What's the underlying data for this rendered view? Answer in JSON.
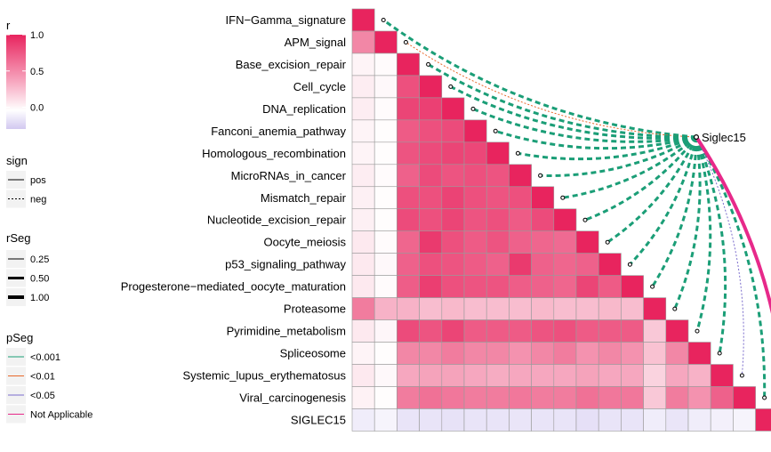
{
  "chart_data": {
    "type": "heatmap",
    "variables": [
      "IFN−Gamma_signature",
      "APM_signal",
      "Base_excision_repair",
      "Cell_cycle",
      "DNA_replication",
      "Fanconi_anemia_pathway",
      "Homologous_recombination",
      "MicroRNAs_in_cancer",
      "Mismatch_repair",
      "Nucleotide_excision_repair",
      "Oocyte_meiosis",
      "p53_signaling_pathway",
      "Progesterone−mediated_oocyte_maturation",
      "Proteasome",
      "Pyrimidine_metabolism",
      "Spliceosome",
      "Systemic_lupus_erythematosus",
      "Viral_carcinogenesis",
      "SIGLEC15"
    ],
    "correlation_rows": [
      [
        1.0
      ],
      [
        0.55,
        1.0
      ],
      [
        0.05,
        0.02,
        1.0
      ],
      [
        0.08,
        0.03,
        0.8,
        1.0
      ],
      [
        0.08,
        0.02,
        0.85,
        0.87,
        1.0
      ],
      [
        0.05,
        0.01,
        0.75,
        0.8,
        0.82,
        1.0
      ],
      [
        0.05,
        0.01,
        0.78,
        0.82,
        0.85,
        0.84,
        1.0
      ],
      [
        0.08,
        0.02,
        0.72,
        0.82,
        0.78,
        0.8,
        0.78,
        1.0
      ],
      [
        0.07,
        0.01,
        0.8,
        0.8,
        0.86,
        0.8,
        0.78,
        0.8,
        1.0
      ],
      [
        0.07,
        0.01,
        0.82,
        0.8,
        0.85,
        0.78,
        0.8,
        0.75,
        0.82,
        1.0
      ],
      [
        0.1,
        0.02,
        0.7,
        0.9,
        0.8,
        0.75,
        0.78,
        0.72,
        0.7,
        0.68,
        1.0
      ],
      [
        0.1,
        0.03,
        0.72,
        0.8,
        0.78,
        0.75,
        0.72,
        0.9,
        0.72,
        0.7,
        0.72,
        1.0
      ],
      [
        0.1,
        0.02,
        0.74,
        0.88,
        0.8,
        0.78,
        0.78,
        0.74,
        0.72,
        0.7,
        0.85,
        0.75,
        1.0
      ],
      [
        0.6,
        0.35,
        0.35,
        0.3,
        0.32,
        0.3,
        0.3,
        0.3,
        0.32,
        0.3,
        0.3,
        0.32,
        0.3,
        1.0
      ],
      [
        0.1,
        0.04,
        0.82,
        0.78,
        0.85,
        0.75,
        0.75,
        0.75,
        0.78,
        0.8,
        0.75,
        0.75,
        0.75,
        0.25,
        1.0
      ],
      [
        0.05,
        0.01,
        0.55,
        0.55,
        0.6,
        0.55,
        0.55,
        0.5,
        0.55,
        0.6,
        0.5,
        0.55,
        0.5,
        0.28,
        0.55,
        1.0
      ],
      [
        0.1,
        0.03,
        0.4,
        0.42,
        0.42,
        0.4,
        0.38,
        0.4,
        0.4,
        0.4,
        0.42,
        0.4,
        0.4,
        0.2,
        0.4,
        0.35,
        1.0
      ],
      [
        0.06,
        0.01,
        0.6,
        0.65,
        0.62,
        0.6,
        0.6,
        0.62,
        0.6,
        0.6,
        0.65,
        0.62,
        0.62,
        0.25,
        0.6,
        0.5,
        0.72,
        1.0
      ],
      [
        -0.1,
        -0.06,
        -0.15,
        -0.15,
        -0.16,
        -0.15,
        -0.15,
        -0.14,
        -0.15,
        -0.15,
        -0.17,
        -0.15,
        -0.15,
        -0.1,
        -0.14,
        -0.1,
        -0.08,
        -0.06,
        1.0
      ]
    ],
    "target": "Siglec15",
    "links": [
      {
        "to": "IFN−Gamma_signature",
        "sign": "pos",
        "p_category": "<0.001",
        "width_class": "0.50"
      },
      {
        "to": "APM_signal",
        "sign": "neg",
        "p_category": "<0.01",
        "width_class": "0.25"
      },
      {
        "to": "Base_excision_repair",
        "sign": "pos",
        "p_category": "<0.001",
        "width_class": "0.50"
      },
      {
        "to": "Cell_cycle",
        "sign": "pos",
        "p_category": "<0.001",
        "width_class": "0.50"
      },
      {
        "to": "DNA_replication",
        "sign": "pos",
        "p_category": "<0.001",
        "width_class": "0.50"
      },
      {
        "to": "Fanconi_anemia_pathway",
        "sign": "pos",
        "p_category": "<0.001",
        "width_class": "0.50"
      },
      {
        "to": "Homologous_recombination",
        "sign": "pos",
        "p_category": "<0.001",
        "width_class": "0.50"
      },
      {
        "to": "MicroRNAs_in_cancer",
        "sign": "pos",
        "p_category": "<0.001",
        "width_class": "0.50"
      },
      {
        "to": "Mismatch_repair",
        "sign": "pos",
        "p_category": "<0.001",
        "width_class": "0.50"
      },
      {
        "to": "Nucleotide_excision_repair",
        "sign": "pos",
        "p_category": "<0.001",
        "width_class": "0.50"
      },
      {
        "to": "Oocyte_meiosis",
        "sign": "pos",
        "p_category": "<0.001",
        "width_class": "0.50"
      },
      {
        "to": "p53_signaling_pathway",
        "sign": "pos",
        "p_category": "<0.001",
        "width_class": "0.50"
      },
      {
        "to": "Progesterone−mediated_oocyte_maturation",
        "sign": "pos",
        "p_category": "<0.001",
        "width_class": "0.50"
      },
      {
        "to": "Proteasome",
        "sign": "pos",
        "p_category": "<0.001",
        "width_class": "0.50"
      },
      {
        "to": "Pyrimidine_metabolism",
        "sign": "pos",
        "p_category": "<0.001",
        "width_class": "0.50"
      },
      {
        "to": "Spliceosome",
        "sign": "pos",
        "p_category": "<0.001",
        "width_class": "0.50"
      },
      {
        "to": "Systemic_lupus_erythematosus",
        "sign": "neg",
        "p_category": "<0.05",
        "width_class": "0.25"
      },
      {
        "to": "Viral_carcinogenesis",
        "sign": "pos",
        "p_category": "<0.001",
        "width_class": "0.50"
      },
      {
        "to": "SIGLEC15",
        "sign": "pos",
        "p_category": "Not Applicable",
        "width_class": "1.00"
      }
    ],
    "legend": {
      "r": {
        "title": "r",
        "ticks": [
          "1.0",
          "0.5",
          "0.0"
        ],
        "range": [
          -0.3,
          1.0
        ]
      },
      "sign": {
        "title": "sign",
        "items": [
          "pos",
          "neg"
        ]
      },
      "rSeg": {
        "title": "rSeg",
        "items": [
          "0.25",
          "0.50",
          "1.00"
        ]
      },
      "pSeg": {
        "title": "pSeg",
        "items": [
          "<0.001",
          "<0.01",
          "<0.05",
          "Not Applicable"
        ]
      },
      "placement": "left"
    },
    "colors": {
      "high": "#e8245e",
      "mid": "#ffffff",
      "low": "#d2c8f0",
      "p_lt_0001": "#1b9e77",
      "p_lt_001": "#e8682a",
      "p_lt_005": "#7b6ccc",
      "p_na": "#e7298a"
    }
  }
}
